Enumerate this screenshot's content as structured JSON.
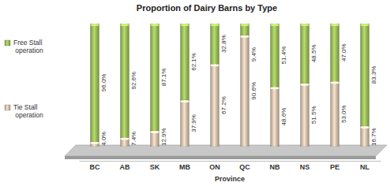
{
  "chart_data": {
    "type": "bar",
    "title": "Proportion of Dairy Barns by Type",
    "x_label": "Province",
    "categories": [
      "BC",
      "AB",
      "SK",
      "MB",
      "ON",
      "QC",
      "NB",
      "NS",
      "PE",
      "NL"
    ],
    "series": [
      {
        "name": "Tie Stall operation",
        "color": "#c9b7a5",
        "values": [
          4.0,
          7.4,
          12.9,
          37.9,
          67.2,
          90.6,
          48.6,
          51.5,
          53.0,
          16.7
        ],
        "value_labels": [
          "4.0%",
          "7.4%",
          "12.9%",
          "37.9%",
          "67.2%",
          "90.6%",
          "48.6%",
          "51.5%",
          "53.0%",
          "16.7%"
        ]
      },
      {
        "name": "Free Stall operation",
        "color": "#93b356",
        "values": [
          96.0,
          92.6,
          87.1,
          62.1,
          32.8,
          9.4,
          51.4,
          48.5,
          47.0,
          83.3
        ],
        "value_labels": [
          "96.0%",
          "92.6%",
          "87.1%",
          "62.1%",
          "32.8%",
          "9.4%",
          "51.4%",
          "48.5%",
          "47.0%",
          "83.3%"
        ]
      }
    ],
    "stacked": true,
    "data_labels": true,
    "legend": "left",
    "ylim": [
      0,
      100
    ],
    "tick_labels": "x"
  }
}
